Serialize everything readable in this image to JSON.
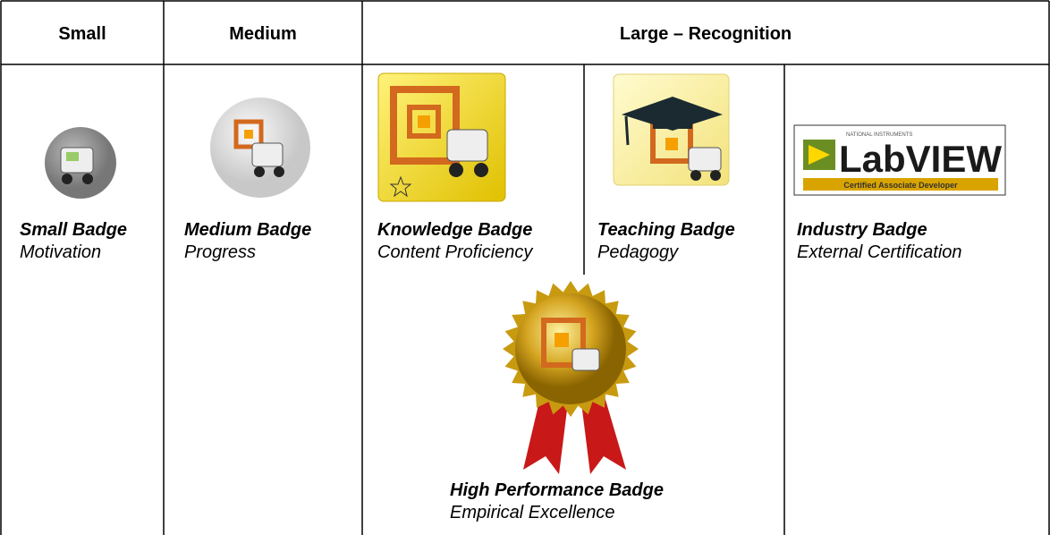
{
  "table": {
    "headers": [
      "Small",
      "Medium",
      "Large – Recognition"
    ]
  },
  "badges": [
    {
      "name": "Small Badge",
      "purpose": "Motivation"
    },
    {
      "name": "Medium Badge",
      "purpose": "Progress"
    },
    {
      "name": "Knowledge Badge",
      "purpose": "Content Proficiency"
    },
    {
      "name": "Teaching Badge",
      "purpose": "Pedagogy"
    },
    {
      "name": "Industry Badge",
      "purpose": "External Certification"
    },
    {
      "name": "High Performance Badge",
      "purpose": "Empirical Excellence"
    }
  ],
  "logo": {
    "maker": "NATIONAL INSTRUMENTS",
    "product": "LabVIEW",
    "certification": "Certified Associate Developer"
  }
}
